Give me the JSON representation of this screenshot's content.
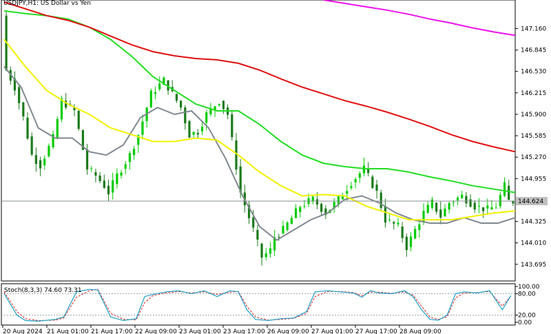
{
  "window_title": "USDJPY,H1: US Dollar vs Yen",
  "colors": {
    "background": "#ffffff",
    "bull_candle": "#00cc00",
    "bear_candle": "#1a7a1a",
    "ma_gray": "#808890",
    "ma_yellow": "#f2f200",
    "ma_green": "#22dd22",
    "ma_red": "#e01010",
    "ma_magenta": "#ee11ee",
    "current_price_line": "#8a9196",
    "stoch_main": "#1ea0c8",
    "stoch_signal": "#e02020"
  },
  "price_axis": {
    "ylim": [
      143.45,
      147.58
    ],
    "ticks": [
      "147.160",
      "146.845",
      "146.530",
      "146.215",
      "145.900",
      "145.585",
      "145.270",
      "144.955",
      "144.325",
      "144.010",
      "143.695"
    ],
    "current_price": "144.624"
  },
  "time_axis": {
    "labels": [
      "20 Aug 2024",
      "21 Aug 01:00",
      "21 Aug 17:00",
      "22 Aug 09:00",
      "23 Aug 01:00",
      "23 Aug 17:00",
      "26 Aug 09:00",
      "27 Aug 01:00",
      "27 Aug 17:00",
      "28 Aug 09:00"
    ]
  },
  "stoch": {
    "label": "Stoch(8,3,3) 74.60 73.31",
    "ticks": [
      "100.00",
      "80.00",
      "20.00",
      "0.00"
    ]
  },
  "chart_data": {
    "type": "line",
    "title": "USDJPY,H1: US Dollar vs Yen",
    "xlabel": "",
    "ylabel": "",
    "ylim": [
      143.45,
      147.58
    ],
    "x_range": [
      0,
      120
    ],
    "series": [
      {
        "key": "price_path",
        "x": [
          0,
          1,
          3,
          5,
          7,
          9,
          12,
          14,
          17,
          20,
          22,
          24,
          25,
          27,
          30,
          32,
          35,
          38,
          40,
          42,
          44,
          46,
          48,
          51,
          53,
          56,
          59,
          61,
          63,
          64,
          66,
          70,
          73,
          76,
          79,
          82,
          85,
          88,
          90,
          93,
          95,
          97,
          99,
          101,
          103,
          105,
          108,
          111,
          114,
          116,
          118,
          119
        ],
        "values": [
          147.35,
          146.55,
          146.3,
          145.85,
          145.3,
          145.15,
          145.55,
          146.1,
          145.95,
          145.1,
          145.0,
          144.85,
          144.75,
          145.0,
          145.3,
          145.6,
          146.2,
          146.4,
          146.2,
          146.0,
          145.6,
          145.65,
          145.9,
          146.1,
          145.9,
          144.75,
          144.2,
          143.8,
          143.9,
          144.1,
          144.2,
          144.55,
          144.65,
          144.45,
          144.65,
          144.9,
          145.1,
          144.75,
          144.35,
          144.25,
          143.95,
          144.2,
          144.45,
          144.6,
          144.4,
          144.6,
          144.7,
          144.55,
          144.5,
          144.55,
          144.85,
          144.62
        ]
      },
      {
        "name": "",
        "color": "#808890",
        "x": [
          0,
          4,
          8,
          12,
          16,
          20,
          24,
          28,
          32,
          36,
          40,
          44,
          48,
          52,
          56,
          60,
          64,
          68,
          72,
          76,
          80,
          84,
          88,
          92,
          96,
          100,
          104,
          108,
          112,
          116,
          120
        ],
        "values": [
          146.6,
          146.3,
          145.7,
          145.55,
          145.55,
          145.35,
          145.3,
          145.45,
          145.85,
          146.0,
          145.9,
          145.95,
          145.7,
          145.25,
          144.7,
          144.25,
          144.05,
          144.2,
          144.35,
          144.45,
          144.65,
          144.7,
          144.6,
          144.45,
          144.35,
          144.3,
          144.3,
          144.38,
          144.3,
          144.3,
          144.38
        ]
      },
      {
        "name": "",
        "color": "#f2f200",
        "x": [
          0,
          5,
          10,
          15,
          20,
          25,
          30,
          35,
          40,
          45,
          50,
          55,
          60,
          65,
          70,
          75,
          80,
          85,
          90,
          95,
          100,
          105,
          110,
          115,
          120
        ],
        "values": [
          147.0,
          146.6,
          146.25,
          146.05,
          145.9,
          145.7,
          145.6,
          145.5,
          145.5,
          145.55,
          145.52,
          145.3,
          145.05,
          144.85,
          144.7,
          144.72,
          144.7,
          144.55,
          144.45,
          144.35,
          144.35,
          144.35,
          144.4,
          144.45,
          144.48
        ]
      },
      {
        "name": "",
        "color": "#22dd22",
        "x": [
          0,
          5,
          10,
          15,
          20,
          25,
          30,
          35,
          40,
          45,
          50,
          55,
          60,
          65,
          70,
          75,
          80,
          85,
          90,
          95,
          100,
          105,
          110,
          115,
          120
        ],
        "values": [
          147.42,
          147.38,
          147.35,
          147.3,
          147.18,
          147.0,
          146.75,
          146.45,
          146.25,
          146.05,
          145.95,
          145.95,
          145.75,
          145.5,
          145.3,
          145.18,
          145.13,
          145.1,
          145.1,
          145.05,
          144.98,
          144.92,
          144.85,
          144.8,
          144.75
        ]
      },
      {
        "name": "",
        "color": "#e01010",
        "x": [
          0,
          5,
          10,
          15,
          20,
          25,
          30,
          35,
          40,
          45,
          50,
          55,
          60,
          65,
          70,
          75,
          80,
          85,
          90,
          95,
          100,
          105,
          110,
          115,
          120
        ],
        "values": [
          147.55,
          147.45,
          147.35,
          147.28,
          147.18,
          147.05,
          146.92,
          146.82,
          146.76,
          146.72,
          146.7,
          146.65,
          146.55,
          146.42,
          146.3,
          146.2,
          146.1,
          146.02,
          145.93,
          145.83,
          145.72,
          145.6,
          145.5,
          145.42,
          145.35
        ]
      },
      {
        "name": "",
        "color": "#ee11ee",
        "x": [
          75,
          80,
          85,
          90,
          95,
          100,
          105,
          110,
          115,
          120
        ],
        "values": [
          147.58,
          147.53,
          147.48,
          147.43,
          147.37,
          147.3,
          147.24,
          147.17,
          147.11,
          147.06
        ]
      }
    ],
    "stochastic": {
      "ylim": [
        0,
        100
      ],
      "x": [
        0,
        3,
        5,
        8,
        12,
        14,
        17,
        20,
        22,
        25,
        28,
        31,
        33,
        35,
        38,
        41,
        44,
        47,
        50,
        53,
        55,
        57,
        59,
        62,
        65,
        68,
        71,
        73,
        76,
        79,
        82,
        84,
        86,
        88,
        91,
        94,
        96,
        98,
        100,
        102,
        104,
        106,
        108,
        111,
        114,
        117,
        119
      ],
      "main": [
        80,
        20,
        5,
        3,
        8,
        15,
        85,
        92,
        90,
        15,
        5,
        10,
        72,
        78,
        85,
        88,
        80,
        88,
        72,
        88,
        85,
        35,
        8,
        5,
        10,
        12,
        30,
        85,
        88,
        85,
        82,
        70,
        88,
        82,
        80,
        88,
        72,
        35,
        8,
        6,
        20,
        80,
        85,
        82,
        88,
        35,
        74.6
      ],
      "signal": [
        85,
        30,
        10,
        5,
        6,
        12,
        70,
        88,
        92,
        25,
        8,
        7,
        55,
        75,
        82,
        86,
        82,
        85,
        78,
        84,
        86,
        45,
        15,
        6,
        8,
        11,
        25,
        72,
        86,
        86,
        83,
        74,
        84,
        84,
        81,
        85,
        76,
        45,
        14,
        8,
        15,
        68,
        82,
        83,
        86,
        45,
        73.31
      ]
    }
  }
}
